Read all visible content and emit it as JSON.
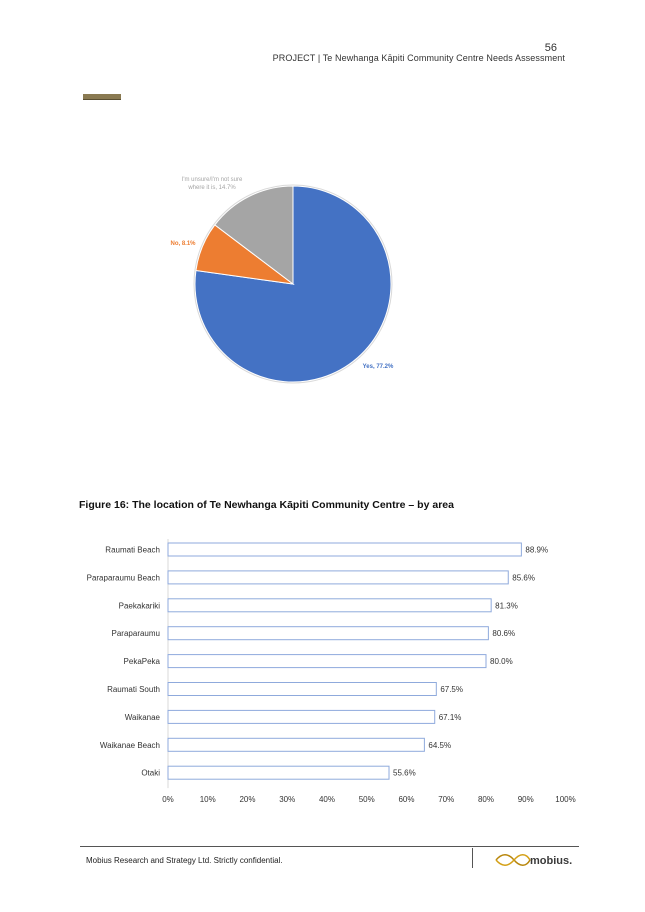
{
  "header": {
    "page_number": "56",
    "title": "PROJECT | Te Newhanga Kāpiti Community Centre Needs Assessment"
  },
  "pie": {
    "labels": [
      {
        "text_line1": "Yes, 77.2%",
        "text_line2": "",
        "color": "#4472c4"
      },
      {
        "text_line1": "No, 8.1%",
        "text_line2": "",
        "color": "#ed7d31"
      },
      {
        "text_line1": "I'm unsure/I'm not sure",
        "text_line2": "where it is, 14.7%",
        "color": "#a5a5a5"
      }
    ]
  },
  "figure": {
    "caption": "Figure 16:  The location of Te Newhanga Kāpiti Community Centre – by area"
  },
  "chart_data": [
    {
      "type": "pie",
      "categories": [
        "Yes",
        "No",
        "I'm unsure/I'm not sure where it is"
      ],
      "values": [
        77.2,
        8.1,
        14.7
      ],
      "colors": [
        "#4472c4",
        "#ed7d31",
        "#a5a5a5"
      ],
      "title": ""
    },
    {
      "type": "bar",
      "orientation": "horizontal",
      "categories": [
        "Raumati Beach",
        "Paraparaumu Beach",
        "Paekakariki",
        "Paraparaumu",
        "PekaPeka",
        "Raumati South",
        "Waikanae",
        "Waikanae Beach",
        "Otaki"
      ],
      "values": [
        88.9,
        85.6,
        81.3,
        80.6,
        80.0,
        67.5,
        67.1,
        64.5,
        55.6
      ],
      "value_labels": [
        "88.9%",
        "85.6%",
        "81.3%",
        "80.6%",
        "80.0%",
        "67.5%",
        "67.1%",
        "64.5%",
        "55.6%"
      ],
      "xlim": [
        0,
        100
      ],
      "x_ticks": [
        "0%",
        "10%",
        "20%",
        "30%",
        "40%",
        "50%",
        "60%",
        "70%",
        "80%",
        "90%",
        "100%"
      ],
      "bar_fill": "#ffffff",
      "bar_stroke": "#8faadc",
      "grid": false
    }
  ],
  "footer": {
    "text": "Mobius Research and Strategy Ltd.  Strictly confidential.",
    "logo_text": "mobius."
  }
}
